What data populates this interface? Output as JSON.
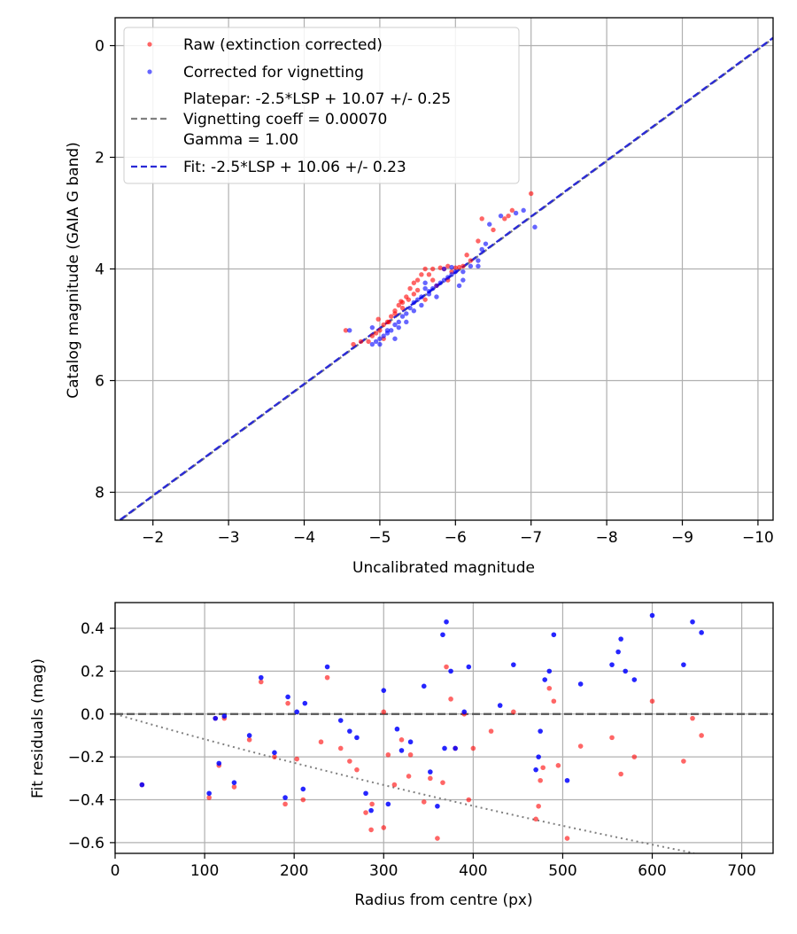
{
  "colors": {
    "raw": "#ff0000",
    "corrected": "#0000ff",
    "platepar_line": "#808080",
    "fit_line": "#2a2ad6",
    "zero_line": "#555555",
    "vignetting_curve": "#808080",
    "grid": "#b0b0b0"
  },
  "chart_data": [
    {
      "type": "scatter",
      "title": "",
      "xlabel": "Uncalibrated magnitude",
      "ylabel": "Catalog magnitude (GAIA G band)",
      "xlim": [
        -1.5,
        -10.2
      ],
      "ylim": [
        8.5,
        -0.5
      ],
      "x_ticks": [
        -2,
        -3,
        -4,
        -5,
        -6,
        -7,
        -8,
        -9,
        -10
      ],
      "x_tick_labels": [
        "−2",
        "−3",
        "−4",
        "−5",
        "−6",
        "−7",
        "−8",
        "−9",
        "−10"
      ],
      "y_ticks": [
        0,
        2,
        4,
        6,
        8
      ],
      "y_tick_labels": [
        "0",
        "2",
        "4",
        "6",
        "8"
      ],
      "grid": true,
      "legend_position": "top-left",
      "legend": [
        {
          "label": "Raw (extinction corrected)",
          "kind": "marker",
          "color_key": "raw"
        },
        {
          "label": "Corrected for vignetting",
          "kind": "marker",
          "color_key": "corrected"
        },
        {
          "label": "Platepar: -2.5*LSP + 10.07 +/- 0.25",
          "kind": "none"
        },
        {
          "label": "Vignetting coeff = 0.00070",
          "kind": "dashed",
          "color_key": "platepar_line"
        },
        {
          "label": "Gamma = 1.00",
          "kind": "none"
        },
        {
          "label": "Fit: -2.5*LSP + 10.06 +/- 0.23",
          "kind": "dashed",
          "color_key": "fit_line"
        }
      ],
      "lines": [
        {
          "name": "Platepar",
          "slope": -2.5,
          "intercept": 10.07
        },
        {
          "name": "Fit",
          "slope": -2.5,
          "intercept": 10.06
        }
      ],
      "series": [
        {
          "name": "Raw (extinction corrected)",
          "x": [
            -7.0,
            -6.75,
            -6.7,
            -6.65,
            -6.5,
            -6.35,
            -6.3,
            -6.2,
            -6.1,
            -6.05,
            -6.0,
            -5.95,
            -5.9,
            -5.85,
            -5.8,
            -5.7,
            -5.6,
            -5.55,
            -5.5,
            -5.45,
            -5.4,
            -5.35,
            -5.3,
            -5.25,
            -5.2,
            -5.15,
            -5.1,
            -5.05,
            -5.0,
            -4.95,
            -4.9,
            -4.85,
            -4.75,
            -4.65,
            -4.55,
            -5.6,
            -5.7,
            -5.45,
            -5.3,
            -5.2,
            -5.05,
            -4.98,
            -5.5,
            -5.38,
            -5.28,
            -5.12,
            -5.65,
            -5.9,
            -6.15,
            -5.75
          ],
          "y": [
            2.65,
            2.95,
            3.05,
            3.1,
            3.3,
            3.1,
            3.5,
            3.85,
            3.95,
            3.97,
            3.98,
            4.05,
            3.95,
            4.0,
            3.98,
            4.0,
            4.0,
            4.1,
            4.2,
            4.25,
            4.35,
            4.5,
            4.6,
            4.65,
            4.8,
            4.85,
            4.95,
            5.0,
            5.1,
            5.15,
            5.2,
            5.3,
            5.3,
            5.35,
            5.1,
            4.55,
            4.2,
            4.45,
            4.7,
            4.75,
            5.25,
            4.9,
            4.38,
            4.55,
            4.58,
            4.95,
            4.1,
            4.2,
            3.75,
            4.3
          ]
        },
        {
          "name": "Corrected for vignetting",
          "x": [
            -7.05,
            -6.9,
            -6.8,
            -6.6,
            -6.45,
            -6.4,
            -6.35,
            -6.3,
            -6.0,
            -5.95,
            -5.9,
            -5.85,
            -5.8,
            -5.75,
            -5.7,
            -5.65,
            -5.6,
            -5.55,
            -5.5,
            -5.45,
            -5.4,
            -5.35,
            -5.3,
            -5.25,
            -5.2,
            -5.15,
            -5.1,
            -5.05,
            -5.0,
            -4.95,
            -4.9,
            -4.6,
            -6.3,
            -6.05,
            -5.55,
            -5.25,
            -5.1,
            -5.35,
            -5.65,
            -5.85,
            -6.1,
            -5.95,
            -5.75,
            -5.45,
            -5.2,
            -5.0,
            -4.9,
            -5.6,
            -6.2,
            -6.1
          ],
          "y": [
            3.25,
            2.95,
            3.0,
            3.05,
            3.2,
            3.55,
            3.65,
            3.95,
            4.05,
            4.1,
            4.15,
            4.2,
            4.25,
            4.3,
            4.35,
            4.45,
            4.35,
            4.5,
            4.55,
            4.6,
            4.7,
            4.8,
            4.85,
            4.95,
            5.0,
            5.1,
            5.15,
            5.2,
            5.25,
            5.3,
            5.35,
            5.1,
            3.85,
            4.3,
            4.65,
            5.05,
            5.1,
            4.95,
            4.4,
            4.0,
            4.2,
            3.97,
            4.5,
            4.75,
            5.25,
            5.35,
            5.05,
            4.25,
            3.95,
            4.05
          ]
        }
      ]
    },
    {
      "type": "scatter",
      "title": "",
      "xlabel": "Radius from centre (px)",
      "ylabel": "Fit residuals (mag)",
      "xlim": [
        0,
        735
      ],
      "ylim": [
        -0.65,
        0.52
      ],
      "x_ticks": [
        0,
        100,
        200,
        300,
        400,
        500,
        600,
        700
      ],
      "x_tick_labels": [
        "0",
        "100",
        "200",
        "300",
        "400",
        "500",
        "600",
        "700"
      ],
      "y_ticks": [
        -0.6,
        -0.4,
        -0.2,
        0.0,
        0.2,
        0.4
      ],
      "y_tick_labels": [
        "−0.6",
        "−0.4",
        "−0.2",
        "0.0",
        "0.2",
        "0.4"
      ],
      "grid": true,
      "reference_lines": [
        {
          "name": "zero",
          "y": 0.0,
          "style": "dashed"
        },
        {
          "name": "vignetting model",
          "style": "dotted",
          "coeff": 0.0007,
          "gamma": 1.0
        }
      ],
      "series": [
        {
          "name": "Raw (extinction corrected)",
          "x": [
            30,
            105,
            112,
            116,
            122,
            133,
            150,
            163,
            178,
            190,
            193,
            203,
            210,
            230,
            237,
            252,
            262,
            270,
            280,
            286,
            287,
            300,
            300,
            305,
            312,
            320,
            328,
            330,
            345,
            352,
            360,
            366,
            370,
            375,
            380,
            390,
            395,
            400,
            420,
            445,
            470,
            473,
            475,
            478,
            485,
            490,
            495,
            505,
            520,
            555,
            565,
            580,
            600,
            635,
            645,
            655
          ],
          "y": [
            -0.33,
            -0.39,
            -0.02,
            -0.24,
            -0.02,
            -0.34,
            -0.12,
            0.15,
            -0.2,
            -0.42,
            0.05,
            -0.21,
            -0.4,
            -0.13,
            0.17,
            -0.16,
            -0.22,
            -0.26,
            -0.46,
            -0.54,
            -0.42,
            0.01,
            -0.53,
            -0.19,
            -0.33,
            -0.12,
            -0.29,
            -0.19,
            -0.41,
            -0.3,
            -0.58,
            -0.32,
            0.22,
            0.07,
            -0.16,
            0.0,
            -0.4,
            -0.16,
            -0.08,
            0.01,
            -0.49,
            -0.43,
            -0.31,
            -0.25,
            0.12,
            0.06,
            -0.24,
            -0.58,
            -0.15,
            -0.11,
            -0.28,
            -0.2,
            0.06,
            -0.22,
            -0.02,
            -0.1
          ]
        },
        {
          "name": "Corrected for vignetting",
          "x": [
            30,
            105,
            112,
            116,
            122,
            133,
            150,
            163,
            178,
            190,
            193,
            203,
            210,
            212,
            237,
            252,
            262,
            270,
            280,
            286,
            300,
            305,
            315,
            320,
            330,
            345,
            352,
            360,
            366,
            368,
            370,
            375,
            380,
            390,
            395,
            430,
            445,
            470,
            473,
            475,
            480,
            485,
            490,
            505,
            520,
            555,
            562,
            565,
            570,
            580,
            600,
            635,
            645,
            655
          ],
          "y": [
            -0.33,
            -0.37,
            -0.02,
            -0.23,
            -0.01,
            -0.32,
            -0.1,
            0.17,
            -0.18,
            -0.39,
            0.08,
            0.01,
            -0.35,
            0.05,
            0.22,
            -0.03,
            -0.08,
            -0.11,
            -0.37,
            -0.45,
            0.11,
            -0.42,
            -0.07,
            -0.17,
            -0.13,
            0.13,
            -0.27,
            -0.43,
            0.37,
            -0.16,
            0.43,
            0.2,
            -0.16,
            0.01,
            0.22,
            0.04,
            0.23,
            -0.26,
            -0.2,
            -0.08,
            0.16,
            0.2,
            0.37,
            -0.31,
            0.14,
            0.23,
            0.29,
            0.35,
            0.2,
            0.16,
            0.46,
            0.23,
            0.43,
            0.38
          ]
        }
      ]
    }
  ]
}
